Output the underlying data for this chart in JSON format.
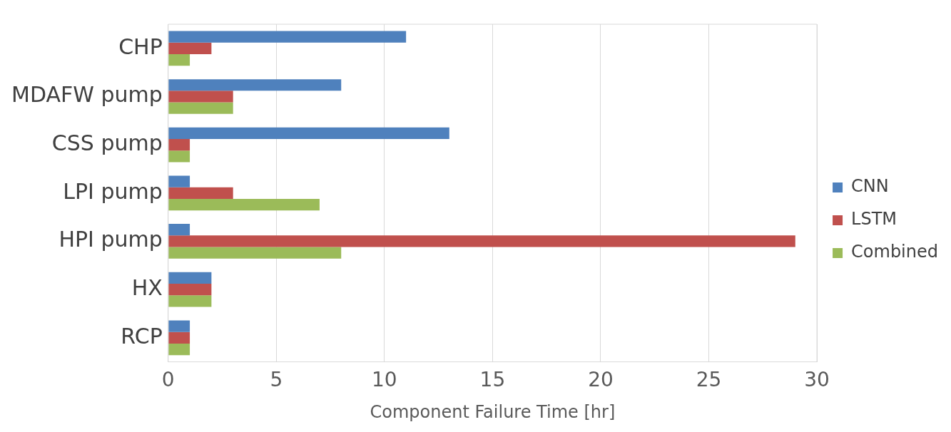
{
  "chart_data": {
    "type": "bar",
    "orientation": "horizontal",
    "xlabel": "Component Failure Time [hr]",
    "categories": [
      "CHP",
      "MDAFW pump",
      "CSS pump",
      "LPI pump",
      "HPI pump",
      "HX",
      "RCP"
    ],
    "series": [
      {
        "name": "CNN",
        "color": "#4f81bd",
        "values": [
          11,
          8,
          13,
          1,
          1,
          2,
          1
        ]
      },
      {
        "name": "LSTM",
        "color": "#c0504d",
        "values": [
          2,
          3,
          1,
          3,
          29,
          2,
          1
        ]
      },
      {
        "name": "Combined",
        "color": "#9bbb59",
        "values": [
          1,
          3,
          1,
          7,
          8,
          2,
          1
        ]
      }
    ],
    "xlim": [
      0,
      30
    ],
    "xticks": [
      0,
      5,
      10,
      15,
      20,
      25,
      30
    ],
    "grid": "x",
    "legend": "right"
  }
}
